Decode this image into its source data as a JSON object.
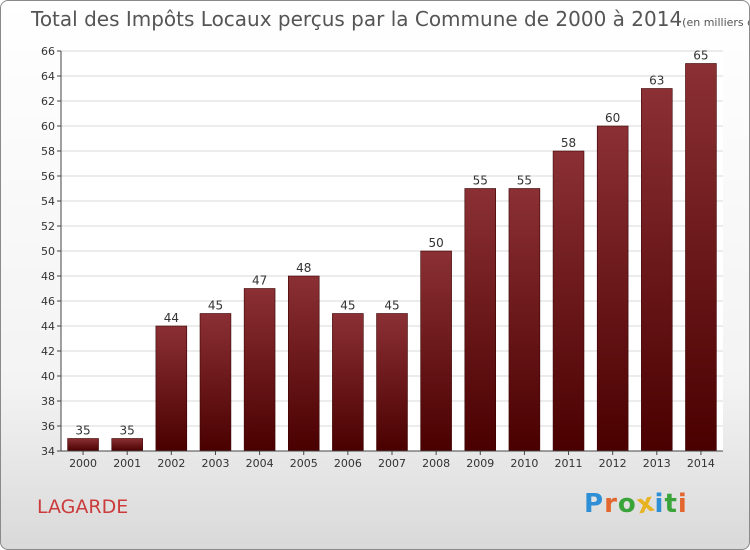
{
  "title": "Total des Impôts Locaux perçus par la Commune de 2000 à 2014",
  "unit": "(en milliers d'€)",
  "commune": "LAGARDE",
  "logo": {
    "letters": [
      "P",
      "r",
      "o",
      "x",
      "i",
      "t",
      "i"
    ],
    "colors": [
      "#2e8fd6",
      "#e2662d",
      "#3aa43a",
      "#e8b321",
      "#2e8fd6",
      "#3aa43a",
      "#e2662d"
    ]
  },
  "colors": {
    "bar_top": "#8b3035",
    "bar_bottom": "#4a0000",
    "grid": "#d8d8d8"
  },
  "chart_data": {
    "type": "bar",
    "title": "Total des Impôts Locaux perçus par la Commune de 2000 à 2014",
    "xlabel": "",
    "ylabel": "",
    "categories": [
      "2000",
      "2001",
      "2002",
      "2003",
      "2004",
      "2005",
      "2006",
      "2007",
      "2008",
      "2009",
      "2010",
      "2011",
      "2012",
      "2013",
      "2014"
    ],
    "values": [
      35,
      35,
      44,
      45,
      47,
      48,
      45,
      45,
      50,
      55,
      55,
      58,
      60,
      63,
      65
    ],
    "ylim": [
      34,
      66
    ],
    "yticks": [
      34,
      36,
      38,
      40,
      42,
      44,
      46,
      48,
      50,
      52,
      54,
      56,
      58,
      60,
      62,
      64,
      66
    ],
    "grid": true,
    "legend": "none"
  }
}
